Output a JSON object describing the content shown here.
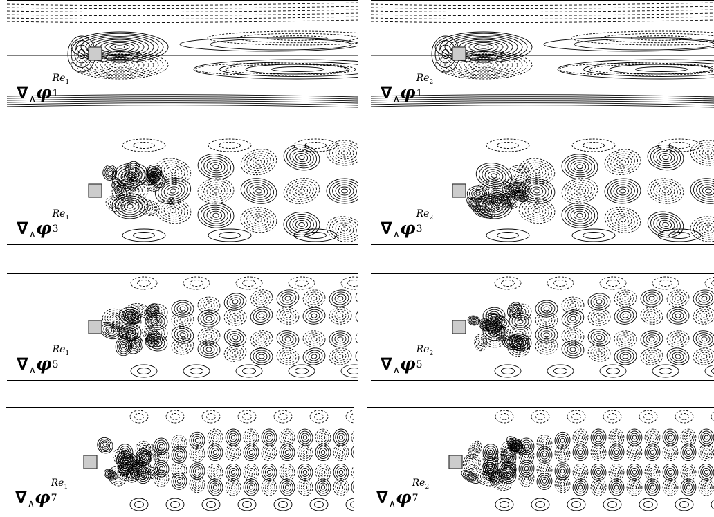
{
  "panels": [
    {
      "mode": "1",
      "re": "Re1",
      "re_sub": "1"
    },
    {
      "mode": "1",
      "re": "Re2",
      "re_sub": "2"
    },
    {
      "mode": "3",
      "re": "Re1",
      "re_sub": "1"
    },
    {
      "mode": "3",
      "re": "Re2",
      "re_sub": "2"
    },
    {
      "mode": "5",
      "re": "Re1",
      "re_sub": "1"
    },
    {
      "mode": "5",
      "re": "Re2",
      "re_sub": "2"
    },
    {
      "mode": "7",
      "re": "Re1",
      "re_sub": "1"
    },
    {
      "mode": "7",
      "re": "Re2",
      "re_sub": "2"
    }
  ],
  "label_text": {
    "nabla": "∇",
    "wedge": "∧",
    "phi": "φ",
    "re_prefix": "Re"
  },
  "colors": {
    "contour": "#000000",
    "cylinder_fill": "#cccccc",
    "cylinder_stroke": "#333333"
  }
}
